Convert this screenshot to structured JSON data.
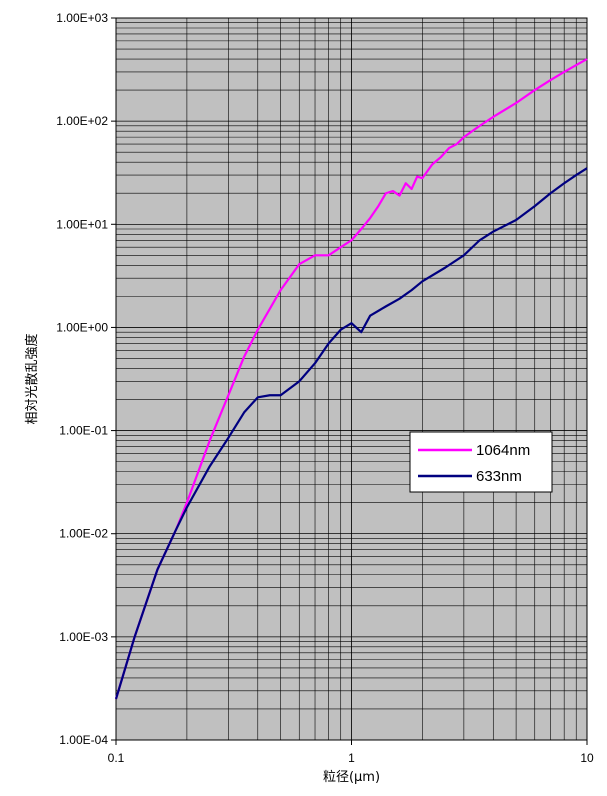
{
  "chart_data": {
    "type": "line",
    "title": "",
    "xlabel": "粒径(μm)",
    "ylabel": "相対光散乱強度",
    "x_scale": "log",
    "y_scale": "log",
    "xlim": [
      0.1,
      10
    ],
    "ylim": [
      0.0001,
      1000
    ],
    "x_tick_labels": [
      "0.1",
      "1",
      "10"
    ],
    "y_tick_labels": [
      "1.00E-04",
      "1.00E-03",
      "1.00E-02",
      "1.00E-01",
      "1.00E+00",
      "1.00E+01",
      "1.00E+02",
      "1.00E+03"
    ],
    "grid": true,
    "plot_background": "#c0c0c0",
    "legend": "center-right",
    "series": [
      {
        "name": "1064nm",
        "color": "#ff00ff",
        "x": [
          0.1,
          0.12,
          0.15,
          0.18,
          0.2,
          0.25,
          0.3,
          0.35,
          0.4,
          0.5,
          0.6,
          0.7,
          0.8,
          0.9,
          1.0,
          1.1,
          1.2,
          1.3,
          1.4,
          1.5,
          1.6,
          1.7,
          1.8,
          1.9,
          2.0,
          2.2,
          2.4,
          2.6,
          2.8,
          3.0,
          3.5,
          4.0,
          5.0,
          6.0,
          7.0,
          8.0,
          9.0,
          10.0
        ],
        "y": [
          0.00025,
          0.001,
          0.0045,
          0.011,
          0.02,
          0.08,
          0.22,
          0.52,
          0.95,
          2.3,
          4.1,
          5.0,
          5.0,
          6.0,
          7.0,
          9.0,
          11.5,
          15.0,
          20.0,
          21.0,
          19.0,
          25.0,
          22.0,
          29.0,
          28.0,
          38.0,
          45.0,
          55.0,
          60.0,
          70.0,
          90.0,
          110.0,
          150.0,
          200.0,
          250.0,
          300.0,
          350.0,
          400.0
        ]
      },
      {
        "name": "633nm",
        "color": "#000080",
        "x": [
          0.1,
          0.12,
          0.15,
          0.18,
          0.2,
          0.25,
          0.3,
          0.35,
          0.4,
          0.45,
          0.5,
          0.6,
          0.7,
          0.8,
          0.9,
          1.0,
          1.1,
          1.2,
          1.4,
          1.6,
          1.8,
          2.0,
          2.5,
          3.0,
          3.5,
          4.0,
          5.0,
          6.0,
          7.0,
          8.0,
          9.0,
          10.0
        ],
        "y": [
          0.00025,
          0.001,
          0.0045,
          0.011,
          0.018,
          0.045,
          0.085,
          0.15,
          0.21,
          0.22,
          0.22,
          0.3,
          0.45,
          0.7,
          0.95,
          1.1,
          0.9,
          1.3,
          1.6,
          1.9,
          2.3,
          2.8,
          3.8,
          5.0,
          7.0,
          8.5,
          11.0,
          15.0,
          20.0,
          25.0,
          30.0,
          35.0
        ]
      }
    ]
  }
}
